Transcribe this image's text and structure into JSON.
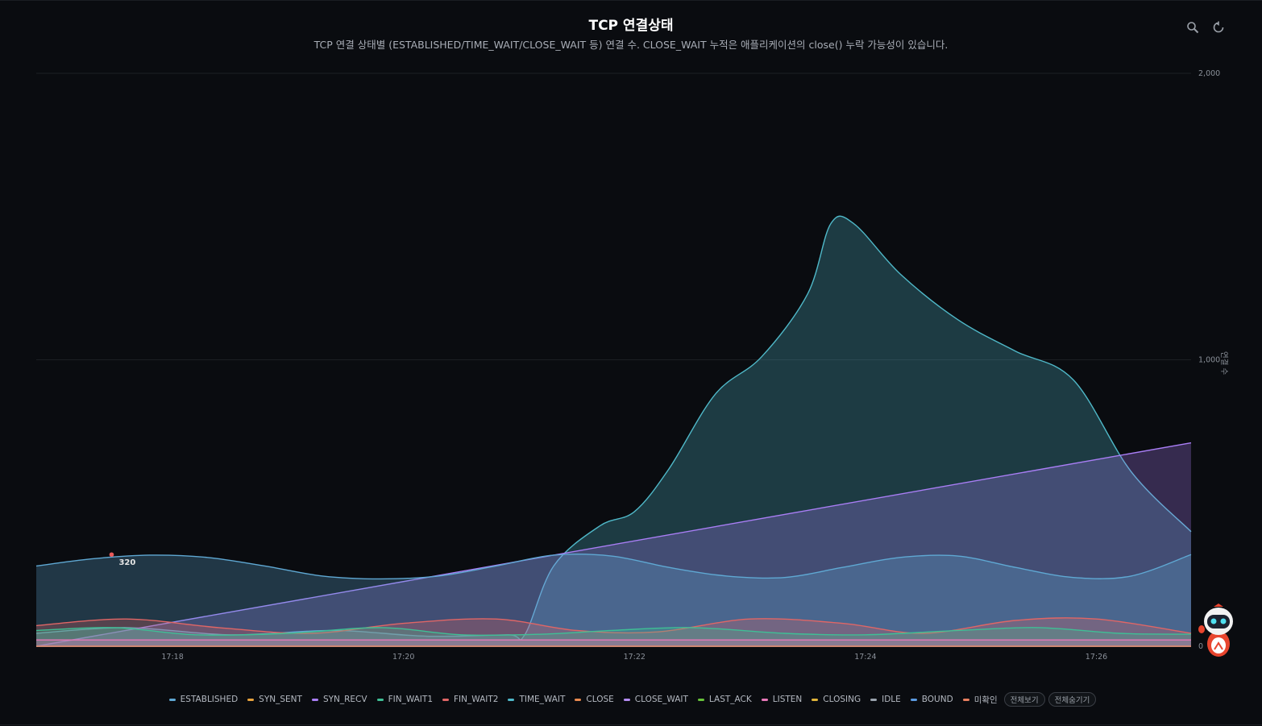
{
  "header": {
    "title": "TCP 연결상태",
    "subtitle": "TCP 연결 상태별 (ESTABLISHED/TIME_WAIT/CLOSE_WAIT 등) 연결 수. CLOSE_WAIT 누적은 애플리케이션의 close() 누락 가능성이 있습니다."
  },
  "toolbar": {
    "zoom_icon": "zoom-icon",
    "reset_icon": "reset-icon"
  },
  "legend": {
    "show_all": "전체보기",
    "hide_all": "전체숨기기"
  },
  "chart_data": {
    "type": "area",
    "ylabel": "연결 수",
    "ylim": [
      0,
      2000
    ],
    "y_ticks": [
      "2,000",
      "1,000",
      "0"
    ],
    "y_tick_values": [
      2000,
      1000,
      0
    ],
    "x_ticks": [
      "17:18",
      "17:20",
      "17:22",
      "17:24",
      "17:26"
    ],
    "x_tick_minutes": [
      1,
      3,
      5,
      7,
      9
    ],
    "x_range_minutes": [
      -0.18,
      9.82
    ],
    "grid": true,
    "legend_position": "bottom",
    "annotation": {
      "label": "320",
      "x": 0.57,
      "y": 320,
      "series": "ESTABLISHED"
    },
    "series": [
      {
        "name": "ESTABLISHED",
        "color": "#5fa8d3",
        "x": [
          -0.18,
          0.3,
          0.8,
          1.3,
          1.8,
          2.3,
          2.8,
          3.3,
          3.8,
          4.3,
          4.8,
          5.3,
          5.8,
          6.3,
          6.8,
          7.3,
          7.8,
          8.3,
          8.8,
          9.3,
          9.82
        ],
        "y": [
          280,
          305,
          318,
          310,
          280,
          245,
          235,
          245,
          280,
          318,
          315,
          275,
          245,
          240,
          275,
          310,
          315,
          275,
          240,
          245,
          320
        ]
      },
      {
        "name": "SYN_SENT",
        "color": "#e8a33d",
        "x": [
          -0.18,
          9.82
        ],
        "y": [
          0,
          0
        ]
      },
      {
        "name": "SYN_RECV",
        "color": "#a97ef5",
        "x": [
          -0.18,
          9.82
        ],
        "y": [
          0,
          710
        ]
      },
      {
        "name": "FIN_WAIT1",
        "color": "#3fbf95",
        "x": [
          -0.18,
          0.5,
          1.2,
          2.0,
          2.8,
          3.5,
          4.2,
          4.8,
          5.5,
          6.3,
          7.0,
          7.8,
          8.5,
          9.2,
          9.82
        ],
        "y": [
          55,
          65,
          40,
          45,
          65,
          40,
          42,
          55,
          65,
          45,
          40,
          55,
          65,
          45,
          42
        ]
      },
      {
        "name": "FIN_WAIT2",
        "color": "#e06666",
        "x": [
          -0.18,
          0.6,
          1.4,
          2.2,
          3.0,
          3.8,
          4.5,
          5.2,
          6.0,
          6.8,
          7.5,
          8.3,
          9.0,
          9.82
        ],
        "y": [
          72,
          95,
          65,
          45,
          80,
          95,
          55,
          50,
          95,
          80,
          45,
          90,
          95,
          45
        ]
      },
      {
        "name": "TIME_WAIT",
        "color": "#4fb8c8",
        "x": [
          -0.18,
          0.6,
          1.5,
          2.4,
          3.2,
          3.9,
          4.05,
          4.3,
          4.7,
          5.0,
          5.3,
          5.7,
          6.1,
          6.5,
          6.7,
          6.9,
          7.3,
          7.8,
          8.3,
          8.8,
          9.3,
          9.82
        ],
        "y": [
          45,
          65,
          40,
          55,
          35,
          40,
          40,
          280,
          420,
          470,
          620,
          880,
          1010,
          1230,
          1475,
          1475,
          1300,
          1140,
          1030,
          930,
          610,
          400
        ]
      },
      {
        "name": "CLOSE",
        "color": "#e8894f",
        "x": [
          -0.18,
          9.82
        ],
        "y": [
          0,
          0
        ]
      },
      {
        "name": "CLOSE_WAIT",
        "color": "#b48cf2",
        "x": [
          -0.18,
          9.82
        ],
        "y": [
          0,
          0
        ]
      },
      {
        "name": "LAST_ACK",
        "color": "#67c23a",
        "x": [
          -0.18,
          9.82
        ],
        "y": [
          0,
          0
        ]
      },
      {
        "name": "LISTEN",
        "color": "#e778b8",
        "x": [
          -0.18,
          9.82
        ],
        "y": [
          22,
          22
        ]
      },
      {
        "name": "CLOSING",
        "color": "#e0b43a",
        "x": [
          -0.18,
          9.82
        ],
        "y": [
          0,
          0
        ]
      },
      {
        "name": "IDLE",
        "color": "#9aa3ad",
        "x": [
          -0.18,
          9.82
        ],
        "y": [
          0,
          0
        ]
      },
      {
        "name": "BOUND",
        "color": "#5b9ae0",
        "x": [
          -0.18,
          9.82
        ],
        "y": [
          0,
          0
        ]
      },
      {
        "name": "미확인",
        "color": "#e87f5f",
        "x": [
          -0.18,
          9.82
        ],
        "y": [
          0,
          0
        ]
      }
    ]
  }
}
